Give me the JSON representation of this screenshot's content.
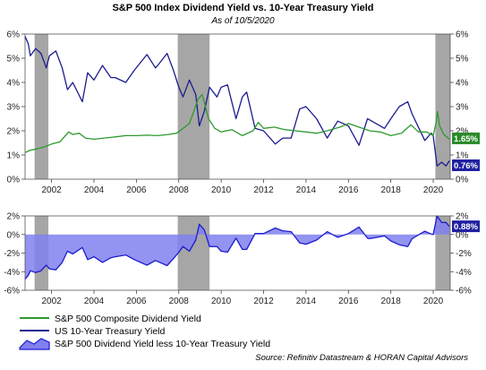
{
  "header": {
    "title": "S&P 500 Index Dividend Yield vs. 10-Year Treasury Yield",
    "subtitle": "As of 10/5/2020"
  },
  "source": "Source: Refinitiv Datastream & HORAN Capital Advisors",
  "colors": {
    "dividend": "#2e9a2e",
    "treasury": "#1c1c8e",
    "spread_fill": "#8080ee",
    "spread_line": "#1c1cd0",
    "recession": "#a6a6a6",
    "badge_green": "#2a8a2a",
    "badge_blue": "#2020a0"
  },
  "chart_data": [
    {
      "type": "line",
      "x_unit": "year",
      "xlim": [
        2000.75,
        2020.8
      ],
      "ylim": [
        0,
        6
      ],
      "x_ticks": [
        2002,
        2004,
        2006,
        2008,
        2010,
        2012,
        2014,
        2016,
        2018,
        2020
      ],
      "x_tick_labels": [
        "2002",
        "2004",
        "2006",
        "2008",
        "2010",
        "2012",
        "2014",
        "2016",
        "2018",
        "2020"
      ],
      "y_ticks": [
        0,
        1,
        2,
        3,
        4,
        5,
        6
      ],
      "y_tick_labels": [
        "0%",
        "1%",
        "2%",
        "3%",
        "4%",
        "5%",
        "6%"
      ],
      "recessions": [
        [
          2001.2,
          2001.85
        ],
        [
          2007.95,
          2009.45
        ],
        [
          2020.1,
          2020.8
        ]
      ],
      "series": [
        {
          "name": "S&P 500 Composite Dividend Yield",
          "last_label": "1.65%",
          "points": [
            [
              2000.75,
              1.1
            ],
            [
              2001.0,
              1.2
            ],
            [
              2001.3,
              1.25
            ],
            [
              2001.7,
              1.35
            ],
            [
              2002.0,
              1.45
            ],
            [
              2002.4,
              1.55
            ],
            [
              2002.6,
              1.75
            ],
            [
              2002.8,
              1.95
            ],
            [
              2003.0,
              1.85
            ],
            [
              2003.3,
              1.9
            ],
            [
              2003.6,
              1.7
            ],
            [
              2004.0,
              1.65
            ],
            [
              2004.5,
              1.7
            ],
            [
              2005.0,
              1.75
            ],
            [
              2005.5,
              1.8
            ],
            [
              2006.0,
              1.8
            ],
            [
              2006.5,
              1.82
            ],
            [
              2007.0,
              1.8
            ],
            [
              2007.5,
              1.85
            ],
            [
              2007.9,
              1.9
            ],
            [
              2008.2,
              2.1
            ],
            [
              2008.5,
              2.3
            ],
            [
              2008.75,
              2.9
            ],
            [
              2008.9,
              3.3
            ],
            [
              2009.1,
              3.5
            ],
            [
              2009.2,
              3.2
            ],
            [
              2009.4,
              2.5
            ],
            [
              2009.7,
              2.1
            ],
            [
              2010.0,
              1.95
            ],
            [
              2010.5,
              2.05
            ],
            [
              2011.0,
              1.8
            ],
            [
              2011.5,
              2.0
            ],
            [
              2011.75,
              2.35
            ],
            [
              2012.0,
              2.1
            ],
            [
              2012.5,
              2.15
            ],
            [
              2013.0,
              2.05
            ],
            [
              2013.5,
              2.0
            ],
            [
              2014.0,
              1.95
            ],
            [
              2014.5,
              1.9
            ],
            [
              2015.0,
              2.0
            ],
            [
              2015.6,
              2.15
            ],
            [
              2016.0,
              2.3
            ],
            [
              2016.5,
              2.15
            ],
            [
              2017.0,
              2.0
            ],
            [
              2017.5,
              1.95
            ],
            [
              2018.0,
              1.8
            ],
            [
              2018.5,
              1.9
            ],
            [
              2018.95,
              2.25
            ],
            [
              2019.3,
              1.95
            ],
            [
              2019.7,
              1.95
            ],
            [
              2020.0,
              1.8
            ],
            [
              2020.15,
              2.4
            ],
            [
              2020.2,
              2.8
            ],
            [
              2020.3,
              2.2
            ],
            [
              2020.5,
              1.85
            ],
            [
              2020.7,
              1.7
            ],
            [
              2020.76,
              1.65
            ]
          ]
        },
        {
          "name": "US 10-Year Treasury Yield",
          "last_label": "0.76%",
          "points": [
            [
              2000.75,
              5.9
            ],
            [
              2000.9,
              5.6
            ],
            [
              2001.0,
              5.1
            ],
            [
              2001.25,
              5.4
            ],
            [
              2001.5,
              5.2
            ],
            [
              2001.75,
              4.6
            ],
            [
              2001.9,
              5.1
            ],
            [
              2002.2,
              5.3
            ],
            [
              2002.5,
              4.6
            ],
            [
              2002.75,
              3.7
            ],
            [
              2003.0,
              4.0
            ],
            [
              2003.45,
              3.2
            ],
            [
              2003.7,
              4.4
            ],
            [
              2004.0,
              4.1
            ],
            [
              2004.4,
              4.7
            ],
            [
              2004.8,
              4.2
            ],
            [
              2005.0,
              4.2
            ],
            [
              2005.5,
              4.0
            ],
            [
              2005.9,
              4.5
            ],
            [
              2006.5,
              5.15
            ],
            [
              2006.9,
              4.6
            ],
            [
              2007.0,
              4.7
            ],
            [
              2007.45,
              5.2
            ],
            [
              2007.75,
              4.5
            ],
            [
              2008.0,
              3.8
            ],
            [
              2008.2,
              3.4
            ],
            [
              2008.5,
              4.1
            ],
            [
              2008.8,
              3.5
            ],
            [
              2008.97,
              2.2
            ],
            [
              2009.2,
              2.8
            ],
            [
              2009.45,
              3.8
            ],
            [
              2009.8,
              3.4
            ],
            [
              2010.0,
              3.8
            ],
            [
              2010.3,
              3.9
            ],
            [
              2010.7,
              2.5
            ],
            [
              2011.0,
              3.4
            ],
            [
              2011.2,
              3.6
            ],
            [
              2011.6,
              2.1
            ],
            [
              2012.0,
              2.0
            ],
            [
              2012.55,
              1.45
            ],
            [
              2012.9,
              1.7
            ],
            [
              2013.3,
              1.7
            ],
            [
              2013.7,
              2.9
            ],
            [
              2014.0,
              3.0
            ],
            [
              2014.5,
              2.5
            ],
            [
              2015.0,
              1.7
            ],
            [
              2015.5,
              2.4
            ],
            [
              2016.0,
              2.2
            ],
            [
              2016.5,
              1.4
            ],
            [
              2016.9,
              2.5
            ],
            [
              2017.0,
              2.45
            ],
            [
              2017.7,
              2.1
            ],
            [
              2018.0,
              2.5
            ],
            [
              2018.4,
              3.0
            ],
            [
              2018.8,
              3.2
            ],
            [
              2019.0,
              2.7
            ],
            [
              2019.6,
              1.6
            ],
            [
              2019.9,
              1.9
            ],
            [
              2020.0,
              1.8
            ],
            [
              2020.18,
              0.55
            ],
            [
              2020.4,
              0.7
            ],
            [
              2020.6,
              0.55
            ],
            [
              2020.76,
              0.76
            ]
          ]
        }
      ]
    },
    {
      "type": "area",
      "x_unit": "year",
      "xlim": [
        2000.75,
        2020.8
      ],
      "ylim": [
        -6,
        2
      ],
      "x_ticks": [
        2002,
        2004,
        2006,
        2008,
        2010,
        2012,
        2014,
        2016,
        2018,
        2020
      ],
      "x_tick_labels": [
        "2002",
        "2004",
        "2006",
        "2008",
        "2010",
        "2012",
        "2014",
        "2016",
        "2018",
        "2020"
      ],
      "y_ticks": [
        2,
        0,
        -2,
        -4,
        -6
      ],
      "y_tick_labels_left": [
        "2%",
        "0%",
        "-2%",
        "-4%",
        "-6%"
      ],
      "y_tick_labels_right": [
        "2%",
        "0%",
        "-2%",
        "-4%",
        "-6%"
      ],
      "recessions": [
        [
          2001.2,
          2001.85
        ],
        [
          2007.95,
          2009.45
        ],
        [
          2020.1,
          2020.8
        ]
      ],
      "series": [
        {
          "name": "S&P 500 Dividend Yield less 10-Year Treasury Yield",
          "last_label": "0.88%",
          "points": [
            [
              2000.75,
              -4.8
            ],
            [
              2000.9,
              -4.4
            ],
            [
              2001.0,
              -3.9
            ],
            [
              2001.25,
              -4.1
            ],
            [
              2001.5,
              -3.9
            ],
            [
              2001.75,
              -3.3
            ],
            [
              2001.9,
              -3.7
            ],
            [
              2002.2,
              -3.8
            ],
            [
              2002.5,
              -3.0
            ],
            [
              2002.75,
              -1.8
            ],
            [
              2003.0,
              -2.1
            ],
            [
              2003.45,
              -1.4
            ],
            [
              2003.7,
              -2.7
            ],
            [
              2004.0,
              -2.4
            ],
            [
              2004.4,
              -3.0
            ],
            [
              2004.8,
              -2.5
            ],
            [
              2005.0,
              -2.4
            ],
            [
              2005.5,
              -2.2
            ],
            [
              2005.9,
              -2.7
            ],
            [
              2006.5,
              -3.3
            ],
            [
              2006.9,
              -2.8
            ],
            [
              2007.0,
              -2.9
            ],
            [
              2007.45,
              -3.35
            ],
            [
              2007.75,
              -2.6
            ],
            [
              2008.0,
              -1.9
            ],
            [
              2008.2,
              -1.3
            ],
            [
              2008.5,
              -1.8
            ],
            [
              2008.8,
              -0.6
            ],
            [
              2008.97,
              1.1
            ],
            [
              2009.2,
              0.5
            ],
            [
              2009.45,
              -1.3
            ],
            [
              2009.8,
              -1.3
            ],
            [
              2010.0,
              -1.8
            ],
            [
              2010.3,
              -1.9
            ],
            [
              2010.7,
              -0.4
            ],
            [
              2011.0,
              -1.6
            ],
            [
              2011.2,
              -1.6
            ],
            [
              2011.6,
              0.1
            ],
            [
              2012.0,
              0.1
            ],
            [
              2012.55,
              0.7
            ],
            [
              2012.9,
              0.4
            ],
            [
              2013.3,
              0.3
            ],
            [
              2013.7,
              -0.9
            ],
            [
              2014.0,
              -1.05
            ],
            [
              2014.5,
              -0.6
            ],
            [
              2015.0,
              0.3
            ],
            [
              2015.5,
              -0.3
            ],
            [
              2016.0,
              0.1
            ],
            [
              2016.5,
              0.8
            ],
            [
              2016.9,
              -0.4
            ],
            [
              2017.0,
              -0.45
            ],
            [
              2017.7,
              -0.15
            ],
            [
              2018.0,
              -0.7
            ],
            [
              2018.4,
              -1.1
            ],
            [
              2018.8,
              -1.3
            ],
            [
              2019.0,
              -0.45
            ],
            [
              2019.6,
              0.35
            ],
            [
              2019.9,
              0.05
            ],
            [
              2020.0,
              0.0
            ],
            [
              2020.18,
              2.0
            ],
            [
              2020.4,
              1.3
            ],
            [
              2020.6,
              1.3
            ],
            [
              2020.76,
              0.88
            ]
          ]
        }
      ]
    }
  ]
}
